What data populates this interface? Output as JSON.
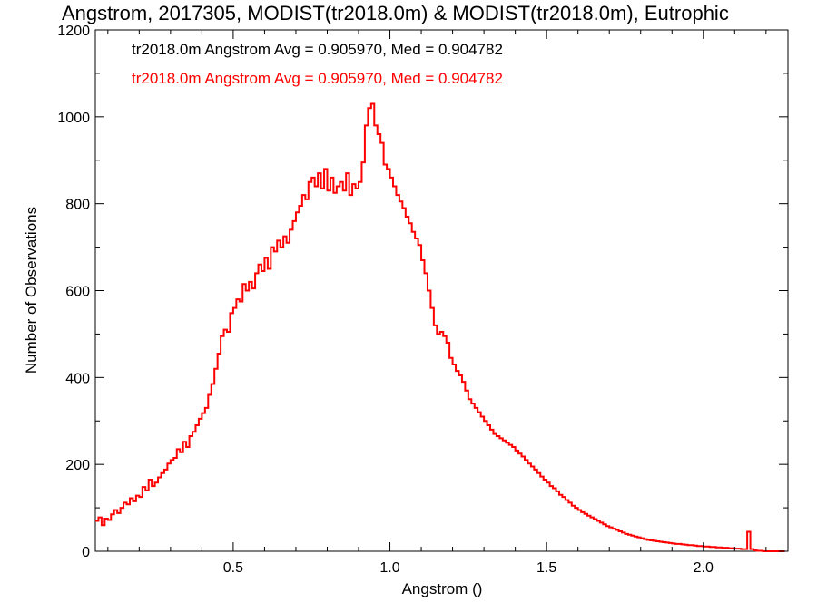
{
  "chart_data": {
    "type": "histogram",
    "title": "Angstrom, 2017305, MODIST(tr2018.0m) & MODIST(tr2018.0m), Eutrophic",
    "xlabel": "Angstrom ()",
    "ylabel": "Number of Observations",
    "xlim": [
      0.06,
      2.27
    ],
    "ylim": [
      0,
      1200
    ],
    "x_ticks": [
      0.5,
      1.0,
      1.5,
      2.0
    ],
    "x_tick_labels": [
      "0.5",
      "1.0",
      "1.5",
      "2.0"
    ],
    "y_ticks": [
      0,
      200,
      400,
      600,
      800,
      1000,
      1200
    ],
    "y_tick_labels": [
      "0",
      "200",
      "400",
      "600",
      "800",
      "1000",
      "1200"
    ],
    "grid": false,
    "annotations": [
      {
        "text": "tr2018.0m Angstrom Avg = 0.905970, Med = 0.904782",
        "color": "#000000"
      },
      {
        "text": "tr2018.0m Angstrom Avg = 0.905970, Med = 0.904782",
        "color": "#ff0000"
      }
    ],
    "series": [
      {
        "color": "#ff0000",
        "overlay_color": "#000000",
        "bin_width": 0.01,
        "x": [
          0.06,
          0.07,
          0.08,
          0.09,
          0.1,
          0.11,
          0.12,
          0.13,
          0.14,
          0.15,
          0.16,
          0.17,
          0.18,
          0.19,
          0.2,
          0.21,
          0.22,
          0.23,
          0.24,
          0.25,
          0.26,
          0.27,
          0.28,
          0.29,
          0.3,
          0.31,
          0.32,
          0.33,
          0.34,
          0.35,
          0.36,
          0.37,
          0.38,
          0.39,
          0.4,
          0.41,
          0.42,
          0.43,
          0.44,
          0.45,
          0.46,
          0.47,
          0.48,
          0.49,
          0.5,
          0.51,
          0.52,
          0.53,
          0.54,
          0.55,
          0.56,
          0.57,
          0.58,
          0.59,
          0.6,
          0.61,
          0.62,
          0.63,
          0.64,
          0.65,
          0.66,
          0.67,
          0.68,
          0.69,
          0.7,
          0.71,
          0.72,
          0.73,
          0.74,
          0.75,
          0.76,
          0.77,
          0.78,
          0.79,
          0.8,
          0.81,
          0.82,
          0.83,
          0.84,
          0.85,
          0.86,
          0.87,
          0.88,
          0.89,
          0.9,
          0.91,
          0.92,
          0.93,
          0.94,
          0.95,
          0.96,
          0.97,
          0.98,
          0.99,
          1.0,
          1.01,
          1.02,
          1.03,
          1.04,
          1.05,
          1.06,
          1.07,
          1.08,
          1.09,
          1.1,
          1.11,
          1.12,
          1.13,
          1.14,
          1.15,
          1.16,
          1.17,
          1.18,
          1.19,
          1.2,
          1.21,
          1.22,
          1.23,
          1.24,
          1.25,
          1.26,
          1.27,
          1.28,
          1.29,
          1.3,
          1.31,
          1.32,
          1.33,
          1.34,
          1.35,
          1.36,
          1.37,
          1.38,
          1.39,
          1.4,
          1.41,
          1.42,
          1.43,
          1.44,
          1.45,
          1.46,
          1.47,
          1.48,
          1.49,
          1.5,
          1.51,
          1.52,
          1.53,
          1.54,
          1.55,
          1.56,
          1.57,
          1.58,
          1.59,
          1.6,
          1.61,
          1.62,
          1.63,
          1.64,
          1.65,
          1.66,
          1.67,
          1.68,
          1.69,
          1.7,
          1.71,
          1.72,
          1.73,
          1.74,
          1.75,
          1.76,
          1.77,
          1.78,
          1.79,
          1.8,
          1.81,
          1.82,
          1.83,
          1.84,
          1.85,
          1.86,
          1.87,
          1.88,
          1.89,
          1.9,
          1.91,
          1.92,
          1.93,
          1.94,
          1.95,
          1.96,
          1.97,
          1.98,
          1.99,
          2.0,
          2.01,
          2.02,
          2.03,
          2.04,
          2.05,
          2.06,
          2.07,
          2.08,
          2.09,
          2.1,
          2.11,
          2.12,
          2.13,
          2.14,
          2.15,
          2.16,
          2.17,
          2.18,
          2.19,
          2.2,
          2.21,
          2.22,
          2.23,
          2.24,
          2.25,
          2.26
        ],
        "values": [
          70,
          78,
          60,
          75,
          72,
          85,
          95,
          88,
          100,
          112,
          108,
          122,
          115,
          128,
          125,
          148,
          140,
          165,
          150,
          158,
          170,
          180,
          188,
          202,
          210,
          215,
          235,
          228,
          252,
          240,
          265,
          275,
          290,
          305,
          318,
          330,
          360,
          385,
          420,
          455,
          495,
          510,
          505,
          548,
          560,
          580,
          575,
          615,
          600,
          620,
          605,
          640,
          660,
          645,
          675,
          650,
          700,
          690,
          715,
          700,
          725,
          710,
          740,
          760,
          780,
          795,
          820,
          810,
          850,
          860,
          840,
          870,
          835,
          880,
          830,
          860,
          825,
          840,
          850,
          830,
          870,
          820,
          845,
          835,
          850,
          895,
          980,
          1020,
          1030,
          980,
          960,
          940,
          890,
          880,
          860,
          840,
          820,
          805,
          790,
          770,
          755,
          735,
          720,
          705,
          670,
          640,
          600,
          560,
          520,
          500,
          505,
          495,
          480,
          445,
          430,
          415,
          405,
          390,
          370,
          350,
          340,
          330,
          320,
          310,
          300,
          290,
          280,
          270,
          265,
          260,
          255,
          250,
          245,
          240,
          232,
          225,
          218,
          210,
          202,
          195,
          188,
          180,
          172,
          165,
          158,
          150,
          145,
          138,
          130,
          125,
          118,
          112,
          105,
          100,
          95,
          90,
          86,
          82,
          78,
          74,
          70,
          66,
          62,
          58,
          55,
          52,
          49,
          46,
          43,
          40,
          38,
          36,
          34,
          32,
          30,
          28,
          26,
          25,
          24,
          23,
          22,
          21,
          20,
          19,
          18,
          17,
          17,
          16,
          15,
          14,
          14,
          13,
          12,
          12,
          11,
          11,
          10,
          10,
          9,
          9,
          8,
          8,
          7,
          7,
          6,
          6,
          5,
          5,
          45,
          5,
          2,
          1,
          1,
          0,
          0,
          0,
          0,
          0,
          0,
          0
        ]
      }
    ]
  }
}
